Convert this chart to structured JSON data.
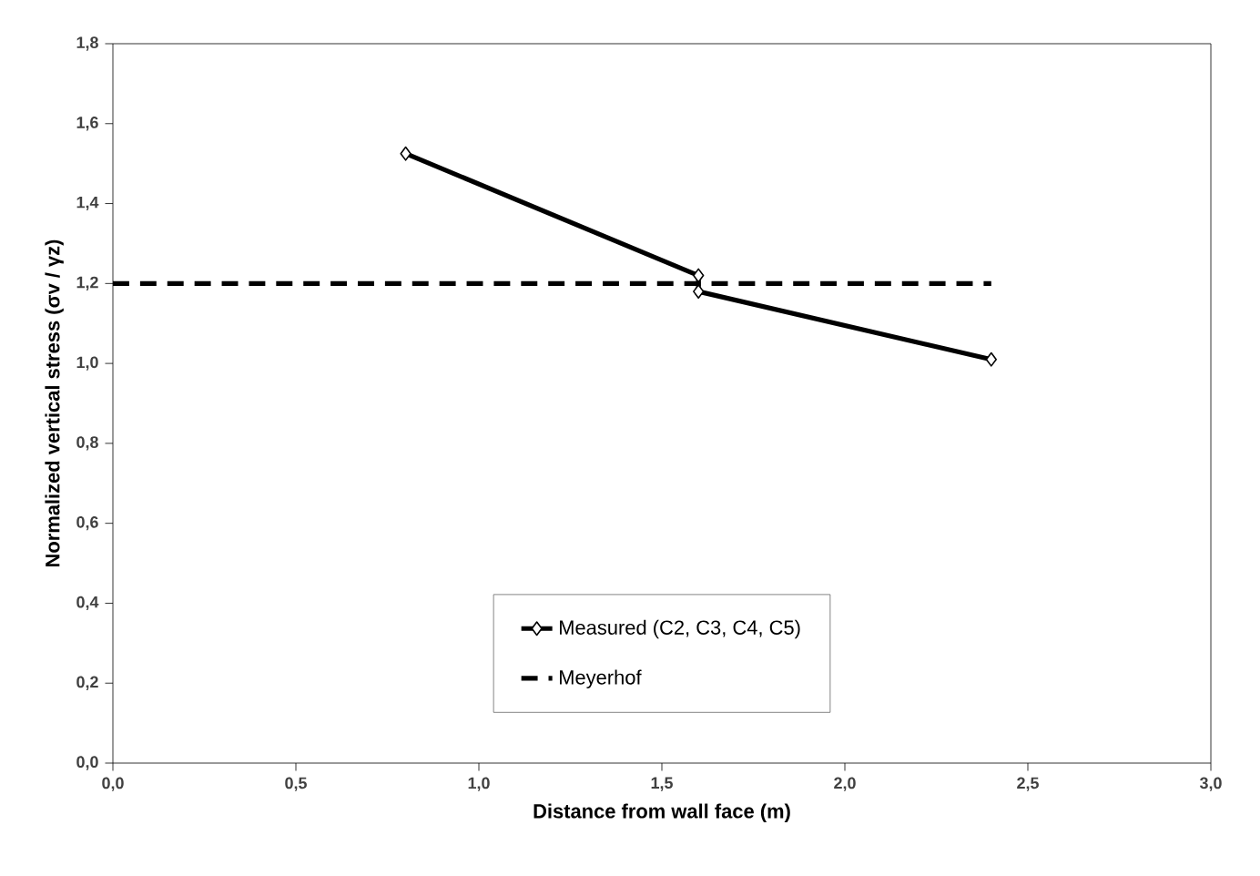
{
  "chart_data": {
    "type": "line",
    "xlabel": "Distance from wall face (m)",
    "ylabel": "Normalized vertical stress (σv / γz)",
    "xlim": [
      0,
      3
    ],
    "ylim": [
      0,
      1.8
    ],
    "xticks": [
      {
        "value": 0,
        "label": "0,0"
      },
      {
        "value": 0.5,
        "label": "0,5"
      },
      {
        "value": 1,
        "label": "1,0"
      },
      {
        "value": 1.5,
        "label": "1,5"
      },
      {
        "value": 2,
        "label": "2,0"
      },
      {
        "value": 2.5,
        "label": "2,5"
      },
      {
        "value": 3,
        "label": "3,0"
      }
    ],
    "yticks": [
      {
        "value": 0,
        "label": "0,0"
      },
      {
        "value": 0.2,
        "label": "0,2"
      },
      {
        "value": 0.4,
        "label": "0,4"
      },
      {
        "value": 0.6,
        "label": "0,6"
      },
      {
        "value": 0.8,
        "label": "0,8"
      },
      {
        "value": 1,
        "label": "1,0"
      },
      {
        "value": 1.2,
        "label": "1,2"
      },
      {
        "value": 1.4,
        "label": "1,4"
      },
      {
        "value": 1.6,
        "label": "1,6"
      },
      {
        "value": 1.8,
        "label": "1,8"
      }
    ],
    "series": [
      {
        "name": "Measured (C2, C3, C4, C5)",
        "color": "#000000",
        "x": [
          0.8,
          1.6,
          1.6,
          2.4
        ],
        "values": [
          1.525,
          1.22,
          1.18,
          1.01
        ],
        "marker": "diamond",
        "line_style": "solid"
      },
      {
        "name": "Meyerhof",
        "color": "#000000",
        "x": [
          0,
          2.4
        ],
        "values": [
          1.2,
          1.2
        ],
        "marker": "none",
        "line_style": "dashed"
      }
    ],
    "legend": "bottom",
    "grid": false
  }
}
